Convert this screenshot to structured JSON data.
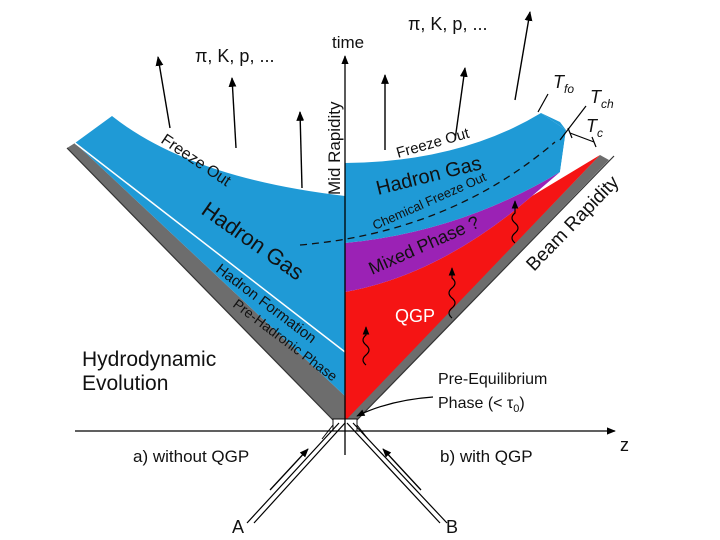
{
  "left": {
    "particles": "π, K, p, ...",
    "freeze_out": "Freeze Out",
    "hadron_gas": "Hadron Gas",
    "hadron_formation": "Hadron Formation",
    "pre_hadronic": "Pre-Hadronic Phase",
    "hydro_line1": "Hydrodynamic",
    "hydro_line2": "Evolution",
    "caption": "a) without QGP"
  },
  "right": {
    "particles": "π, K, p, ...",
    "freeze_out": "Freeze Out",
    "hadron_gas": "Hadron Gas",
    "chemical_freeze_out": "Chemical Freeze Out",
    "mixed_phase": "Mixed Phase ?",
    "qgp": "QGP",
    "pre_eq_line1": "Pre-Equilibrium",
    "pre_eq_line2": "Phase (< τ",
    "pre_eq_sub": "0",
    "pre_eq_close": ")",
    "caption": "b) with QGP",
    "t_fo": "T",
    "t_fo_sub": "fo",
    "t_ch": "T",
    "t_ch_sub": "ch",
    "t_c": "T",
    "t_c_sub": "c"
  },
  "axes": {
    "time": "time",
    "mid_rapidity": "Mid Rapidity",
    "beam_rapidity": "Beam Rapidity",
    "z": "z",
    "beam_a": "A",
    "beam_b": "B"
  },
  "colors": {
    "hadron_gas": "#1f9ad6",
    "mixed_phase": "#9b22b5",
    "qgp": "#f51414",
    "pre_phase": "#6d6d6d"
  }
}
